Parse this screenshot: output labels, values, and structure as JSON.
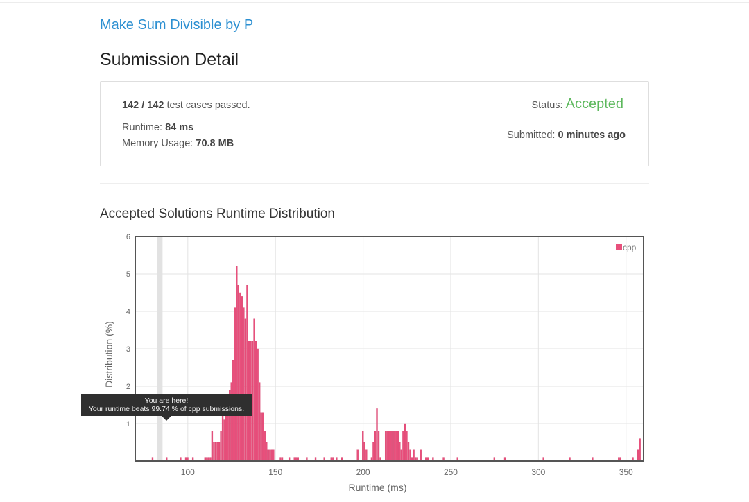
{
  "problem": {
    "title": "Make Sum Divisible by P"
  },
  "page": {
    "title": "Submission Detail"
  },
  "details": {
    "passed": "142",
    "total": "142",
    "passed_suffix": "test cases passed.",
    "runtime_label": "Runtime:",
    "runtime_value": "84 ms",
    "memory_label": "Memory Usage:",
    "memory_value": "70.8 MB",
    "status_label": "Status:",
    "status_value": "Accepted",
    "submitted_label": "Submitted:",
    "submitted_value": "0 minutes ago"
  },
  "colors": {
    "accent": "#2b8fd1",
    "accepted": "#5cb85c",
    "bar": "#e8507c"
  },
  "chart_data": {
    "type": "bar",
    "title": "Accepted Solutions Runtime Distribution",
    "xlabel": "Runtime (ms)",
    "ylabel": "Distribution (%)",
    "xlim": [
      70,
      360
    ],
    "ylim": [
      0,
      6
    ],
    "xticks": [
      100,
      150,
      200,
      250,
      300,
      350
    ],
    "yticks": [
      1,
      2,
      3,
      4,
      5,
      6
    ],
    "legend": {
      "label": "cpp",
      "position": "top-right"
    },
    "highlight_runtime": 84,
    "tooltip": {
      "line1": "You are here!",
      "line2": "Your runtime beats 99.74 % of cpp submissions."
    },
    "bin_width": 1,
    "points": [
      [
        80,
        0.1
      ],
      [
        88,
        0.1
      ],
      [
        96,
        0.1
      ],
      [
        99,
        0.1
      ],
      [
        100,
        0.1
      ],
      [
        103,
        0.1
      ],
      [
        110,
        0.1
      ],
      [
        111,
        0.1
      ],
      [
        112,
        0.1
      ],
      [
        113,
        0.1
      ],
      [
        114,
        0.8
      ],
      [
        115,
        0.5
      ],
      [
        116,
        0.5
      ],
      [
        117,
        0.5
      ],
      [
        118,
        0.5
      ],
      [
        119,
        0.8
      ],
      [
        120,
        1.3
      ],
      [
        121,
        1.1
      ],
      [
        122,
        1.7
      ],
      [
        123,
        1.6
      ],
      [
        124,
        1.9
      ],
      [
        125,
        2.1
      ],
      [
        126,
        2.7
      ],
      [
        127,
        4.1
      ],
      [
        128,
        5.2
      ],
      [
        129,
        4.7
      ],
      [
        130,
        4.5
      ],
      [
        131,
        4.4
      ],
      [
        132,
        4.1
      ],
      [
        133,
        3.8
      ],
      [
        134,
        4.7
      ],
      [
        135,
        3.2
      ],
      [
        136,
        3.2
      ],
      [
        137,
        3.2
      ],
      [
        138,
        3.8
      ],
      [
        139,
        3.2
      ],
      [
        140,
        3.0
      ],
      [
        141,
        2.1
      ],
      [
        142,
        1.3
      ],
      [
        143,
        1.3
      ],
      [
        144,
        0.8
      ],
      [
        145,
        0.5
      ],
      [
        146,
        0.3
      ],
      [
        147,
        0.3
      ],
      [
        148,
        0.3
      ],
      [
        149,
        0.3
      ],
      [
        153,
        0.1
      ],
      [
        154,
        0.1
      ],
      [
        158,
        0.1
      ],
      [
        161,
        0.1
      ],
      [
        162,
        0.1
      ],
      [
        163,
        0.1
      ],
      [
        168,
        0.1
      ],
      [
        173,
        0.1
      ],
      [
        178,
        0.1
      ],
      [
        182,
        0.1
      ],
      [
        183,
        0.1
      ],
      [
        185,
        0.1
      ],
      [
        188,
        0.1
      ],
      [
        197,
        0.3
      ],
      [
        200,
        0.8
      ],
      [
        201,
        0.5
      ],
      [
        202,
        0.3
      ],
      [
        205,
        0.1
      ],
      [
        206,
        0.5
      ],
      [
        207,
        0.8
      ],
      [
        208,
        1.4
      ],
      [
        209,
        0.8
      ],
      [
        210,
        0.1
      ],
      [
        213,
        0.8
      ],
      [
        214,
        0.8
      ],
      [
        215,
        0.8
      ],
      [
        216,
        0.8
      ],
      [
        217,
        0.8
      ],
      [
        218,
        0.8
      ],
      [
        219,
        0.8
      ],
      [
        220,
        0.8
      ],
      [
        221,
        0.5
      ],
      [
        222,
        0.3
      ],
      [
        223,
        0.8
      ],
      [
        224,
        1.0
      ],
      [
        225,
        0.8
      ],
      [
        226,
        0.5
      ],
      [
        227,
        0.3
      ],
      [
        228,
        0.1
      ],
      [
        229,
        0.3
      ],
      [
        230,
        0.1
      ],
      [
        231,
        0.1
      ],
      [
        233,
        0.3
      ],
      [
        236,
        0.1
      ],
      [
        237,
        0.1
      ],
      [
        240,
        0.1
      ],
      [
        246,
        0.1
      ],
      [
        254,
        0.1
      ],
      [
        275,
        0.1
      ],
      [
        281,
        0.1
      ],
      [
        303,
        0.1
      ],
      [
        318,
        0.1
      ],
      [
        331,
        0.1
      ],
      [
        346,
        0.1
      ],
      [
        347,
        0.1
      ],
      [
        354,
        0.1
      ],
      [
        357,
        0.3
      ],
      [
        358,
        0.6
      ]
    ]
  }
}
